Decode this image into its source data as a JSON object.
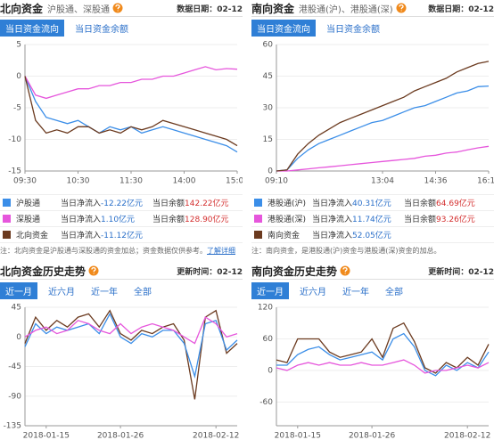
{
  "panels": [
    {
      "title": "北向资金",
      "subtitle": "沪股通、深股通",
      "date": "数据日期：02-12",
      "tabs": [
        "当日资金流向",
        "当日资金余额"
      ],
      "legend": [
        {
          "net_label": "当日净流入",
          "net": "-12.22亿元",
          "balance_label": "当日余额",
          "balance": "142.22亿元"
        },
        {
          "net_label": "当日净流入",
          "net": "1.10亿元",
          "balance_label": "当日余额",
          "balance": "128.90亿元"
        },
        {
          "net_label": "当日净流入",
          "net": "-11.12亿元"
        }
      ],
      "note": "注：北向资金是沪股通与深股通的资金加总；资金数据仅供参考。",
      "note_link": "了解详细"
    },
    {
      "title": "南向资金",
      "subtitle": "港股通(沪)、港股通(深)",
      "date": "数据日期：02-12",
      "tabs": [
        "当日资金流向",
        "当日资金余额"
      ],
      "legend": [
        {
          "net_label": "当日净流入",
          "net": "40.31亿元",
          "balance_label": "当日余额",
          "balance": "64.69亿元"
        },
        {
          "net_label": "当日净流入",
          "net": "11.74亿元",
          "balance_label": "当日余额",
          "balance": "93.26亿元"
        },
        {
          "net_label": "当日净流入",
          "net": "52.05亿元"
        }
      ],
      "note": "注：南向资金，是港股通(沪)资金与港股通(深)资金的加总。"
    },
    {
      "title": "北向资金历史走势",
      "date": "更新时间：02-12",
      "tabs": [
        "近一月",
        "近六月",
        "近一年",
        "全部"
      ]
    },
    {
      "title": "南向资金历史走势",
      "date": "更新时间：02-12",
      "tabs": [
        "近一月",
        "近六月",
        "近一年",
        "全部"
      ]
    }
  ],
  "chart_data": [
    {
      "type": "line",
      "categories": [
        "09:30",
        null,
        null,
        null,
        null,
        "10:30",
        null,
        null,
        null,
        null,
        "11:30",
        null,
        null,
        null,
        null,
        "14:00",
        null,
        null,
        null,
        null,
        "15:00"
      ],
      "ylim": [
        -15,
        5
      ],
      "yticks": [
        5,
        0,
        -5,
        -10,
        -15
      ],
      "grid": true,
      "series": [
        {
          "name": "沪股通",
          "color": "#3b8ee8",
          "values": [
            0,
            -4,
            -6.5,
            -7,
            -7.5,
            -7,
            -8,
            -9,
            -8,
            -8.5,
            -8,
            -9,
            -8.5,
            -8,
            -8.5,
            -9,
            -9.5,
            -10,
            -10.5,
            -11,
            -12
          ]
        },
        {
          "name": "深股通",
          "color": "#e656dc",
          "values": [
            0,
            -3,
            -3.5,
            -3,
            -2.5,
            -2,
            -2,
            -1.5,
            -1.5,
            -1,
            -1,
            -0.5,
            -0.5,
            0,
            0,
            0.5,
            1,
            1.5,
            1,
            1.2,
            1.1
          ]
        },
        {
          "name": "北向资金",
          "color": "#6b3a1f",
          "values": [
            0,
            -7,
            -9,
            -8.5,
            -9,
            -8,
            -8,
            -9,
            -8.5,
            -9,
            -8,
            -8.5,
            -8,
            -7,
            -7.5,
            -8,
            -8.5,
            -9,
            -9.5,
            -10,
            -11
          ]
        }
      ]
    },
    {
      "type": "line",
      "categories": [
        "09:10",
        null,
        null,
        null,
        null,
        null,
        null,
        null,
        null,
        null,
        "13:04",
        null,
        null,
        null,
        null,
        "14:36",
        null,
        null,
        null,
        null,
        "16:10"
      ],
      "ylim": [
        0,
        60
      ],
      "yticks": [
        60,
        45,
        30,
        15,
        0
      ],
      "grid": true,
      "series": [
        {
          "name": "港股通(沪)",
          "color": "#3b8ee8",
          "values": [
            0,
            0.5,
            6,
            10,
            13,
            15,
            17,
            19,
            21,
            23,
            24,
            26,
            28,
            30,
            31,
            33,
            35,
            37,
            38,
            40,
            40.3
          ]
        },
        {
          "name": "港股通(深)",
          "color": "#e656dc",
          "values": [
            0,
            0,
            0.5,
            1,
            1.5,
            2,
            2.5,
            3,
            3.5,
            4,
            4.5,
            5,
            5.5,
            6,
            7,
            7.5,
            8.5,
            9,
            10,
            11,
            11.7
          ]
        },
        {
          "name": "南向资金",
          "color": "#6b3a1f",
          "values": [
            0,
            0.5,
            8,
            13,
            17,
            20,
            23,
            25,
            27,
            29,
            31,
            33,
            35,
            38,
            40,
            42,
            44,
            47,
            49,
            51,
            52
          ]
        }
      ]
    },
    {
      "type": "line",
      "categories": [
        null,
        null,
        "2018-01-15",
        null,
        null,
        null,
        null,
        null,
        null,
        "2018-01-26",
        null,
        null,
        null,
        null,
        null,
        null,
        null,
        null,
        "2018-02-12",
        null,
        null
      ],
      "ylim": [
        -135,
        45
      ],
      "yticks": [
        45,
        0,
        -45,
        -90,
        -135
      ],
      "grid": true,
      "series": [
        {
          "color": "#6b3a1f",
          "values": [
            -10,
            30,
            10,
            25,
            15,
            30,
            35,
            15,
            40,
            5,
            -5,
            10,
            5,
            15,
            20,
            -5,
            -95,
            30,
            40,
            -25,
            -10
          ]
        },
        {
          "color": "#3b8ee8",
          "values": [
            -15,
            20,
            5,
            15,
            10,
            15,
            20,
            5,
            35,
            0,
            -10,
            5,
            0,
            10,
            10,
            -10,
            -60,
            20,
            25,
            -20,
            -5
          ]
        },
        {
          "color": "#e656dc",
          "values": [
            0,
            10,
            15,
            5,
            10,
            25,
            20,
            10,
            5,
            20,
            5,
            15,
            20,
            15,
            10,
            0,
            -10,
            30,
            20,
            0,
            5
          ]
        }
      ]
    },
    {
      "type": "line",
      "categories": [
        null,
        null,
        "2018-01-15",
        null,
        null,
        null,
        null,
        null,
        null,
        "2018-01-26",
        null,
        null,
        null,
        null,
        null,
        null,
        null,
        null,
        "2018-02-12",
        null,
        null
      ],
      "ylim": [
        -105,
        120
      ],
      "yticks": [
        120,
        60,
        0,
        -60
      ],
      "grid": true,
      "series": [
        {
          "color": "#6b3a1f",
          "values": [
            20,
            15,
            60,
            60,
            60,
            35,
            25,
            30,
            35,
            60,
            25,
            80,
            90,
            55,
            5,
            -5,
            15,
            5,
            25,
            10,
            50
          ]
        },
        {
          "color": "#3b8ee8",
          "values": [
            10,
            10,
            30,
            40,
            45,
            30,
            20,
            25,
            30,
            35,
            20,
            60,
            70,
            45,
            0,
            -10,
            10,
            0,
            15,
            5,
            35
          ]
        },
        {
          "color": "#e656dc",
          "values": [
            5,
            0,
            10,
            15,
            10,
            15,
            10,
            10,
            15,
            10,
            10,
            15,
            20,
            10,
            -5,
            0,
            0,
            5,
            10,
            5,
            15
          ]
        }
      ]
    }
  ]
}
